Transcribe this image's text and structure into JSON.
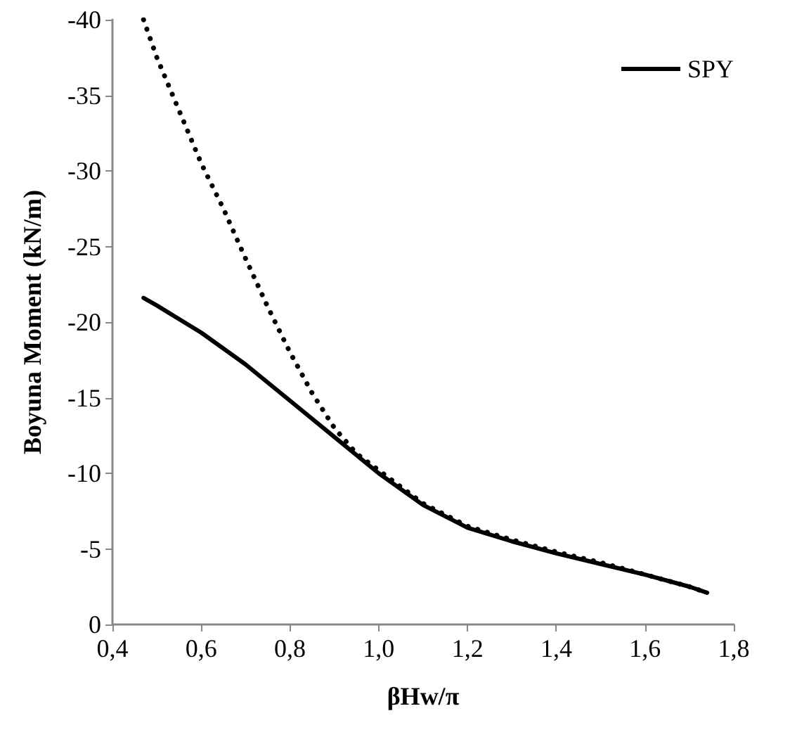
{
  "chart_data": {
    "type": "line",
    "xlabel": "βHw/π",
    "ylabel": "Boyuna Moment (kN/m)",
    "xlim": [
      0.4,
      1.8
    ],
    "xticks": [
      {
        "value": 0.4,
        "label": "0,4"
      },
      {
        "value": 0.6,
        "label": "0,6"
      },
      {
        "value": 0.8,
        "label": "0,8"
      },
      {
        "value": 1.0,
        "label": "1,0"
      },
      {
        "value": 1.2,
        "label": "1,2"
      },
      {
        "value": 1.4,
        "label": "1,4"
      },
      {
        "value": 1.6,
        "label": "1,6"
      },
      {
        "value": 1.8,
        "label": "1,8"
      }
    ],
    "ylim": [
      0,
      -40
    ],
    "yticks": [
      0,
      -5,
      -10,
      -15,
      -20,
      -25,
      -30,
      -35,
      -40
    ],
    "grid": false,
    "legend": "top right",
    "marker": "none",
    "series": [
      {
        "name": "SPY",
        "color": "#000000",
        "line_style": "solid",
        "x": [
          0.47,
          0.5,
          0.6,
          0.7,
          0.8,
          0.9,
          1.0,
          1.1,
          1.2,
          1.3,
          1.4,
          1.5,
          1.6,
          1.7,
          1.74
        ],
        "values": [
          -21.6,
          -21.1,
          -19.3,
          -17.2,
          -14.8,
          -12.4,
          -10,
          -7.9,
          -6.4,
          -5.5,
          -4.7,
          -4,
          -3.3,
          -2.5,
          -2.1
        ]
      },
      {
        "color": "#000000",
        "line_style": "dotted",
        "x": [
          0.47,
          0.5,
          0.55,
          0.6,
          0.65,
          0.7,
          0.75,
          0.8,
          0.85,
          0.9,
          0.95,
          1.0,
          1.1,
          1.2,
          1.3,
          1.4,
          1.5,
          1.6,
          1.7,
          1.74
        ],
        "values": [
          -40,
          -37.5,
          -34,
          -30.5,
          -27.5,
          -24.2,
          -21,
          -18,
          -15.3,
          -13,
          -11.3,
          -10.2,
          -8.0,
          -6.5,
          -5.6,
          -4.8,
          -4.1,
          -3.3,
          -2.5,
          -2.1
        ]
      }
    ]
  }
}
